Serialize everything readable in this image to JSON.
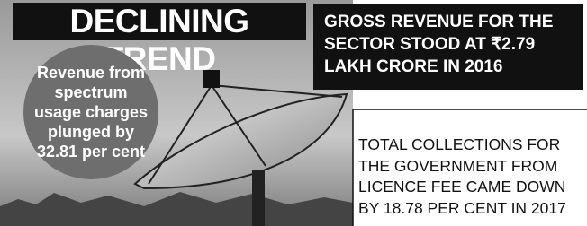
{
  "header": {
    "title": "DECLINING TREND"
  },
  "circle": {
    "lines": [
      "Revenue from",
      "spectrum",
      "usage charges",
      "plunged by",
      "32.81 per cent"
    ]
  },
  "top_box": {
    "lines": [
      "GROSS REVENUE FOR THE",
      "SECTOR STOOD AT ₹2.79",
      "LAKH CRORE IN 2016"
    ]
  },
  "bottom_text": {
    "lines": [
      "TOTAL COLLECTIONS FOR",
      "THE GOVERNMENT FROM",
      "LICENCE FEE CAME DOWN",
      "BY 18.78 PER CENT IN 2017"
    ]
  }
}
